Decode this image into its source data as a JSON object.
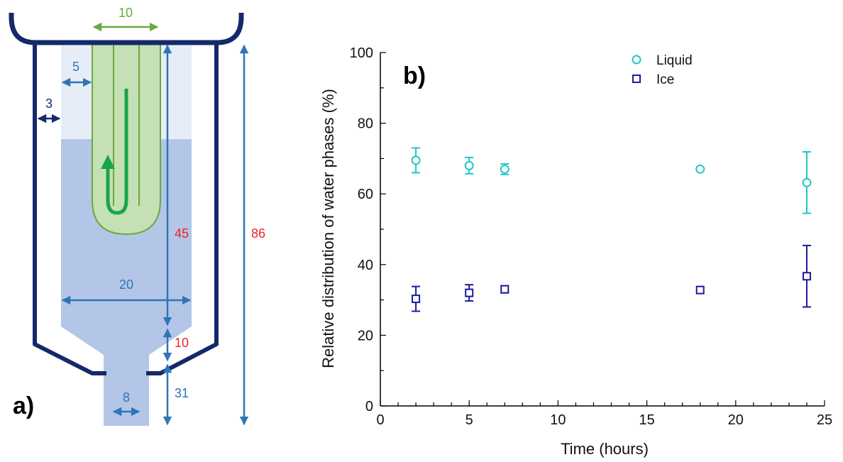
{
  "panel_a": {
    "label": "a)",
    "dimensions": {
      "top_width": "10",
      "gap": "5",
      "wall": "3",
      "height_upper": "45",
      "total_height": "86",
      "inner_width": "20",
      "cone": "10",
      "neck_width": "8",
      "neck_height": "31"
    },
    "colors": {
      "outline": "#14296a",
      "dimension_blue": "#2e75b6",
      "dimension_red": "#e8262a",
      "probe_green": "#6aaa3a",
      "liquid": "#b3c6e7",
      "headspace": "#e7edf7"
    }
  },
  "chart_data": {
    "type": "scatter",
    "panel_label": "b)",
    "xlabel": "Time (hours)",
    "ylabel": "Relative distribution of water phases (%)",
    "xlim": [
      0,
      25
    ],
    "ylim": [
      0,
      100
    ],
    "xticks": [
      "0",
      "5",
      "10",
      "15",
      "20",
      "25"
    ],
    "yticks": [
      "0",
      "20",
      "40",
      "60",
      "80",
      "100"
    ],
    "grid": false,
    "legend_position": "top-right",
    "series": [
      {
        "name": "Liquid",
        "marker": "circle",
        "color": "#1fc7c7",
        "x": [
          2,
          5,
          7,
          18,
          24
        ],
        "y": [
          69.5,
          68,
          67,
          67,
          63.2
        ],
        "err": [
          3.5,
          2.3,
          1.5,
          0,
          8.7
        ]
      },
      {
        "name": "Ice",
        "marker": "square",
        "color": "#1a1aa0",
        "x": [
          2,
          5,
          7,
          18,
          24
        ],
        "y": [
          30.3,
          32,
          33,
          32.8,
          36.7
        ],
        "err": [
          3.5,
          2.3,
          1.0,
          0,
          8.7
        ]
      }
    ]
  }
}
